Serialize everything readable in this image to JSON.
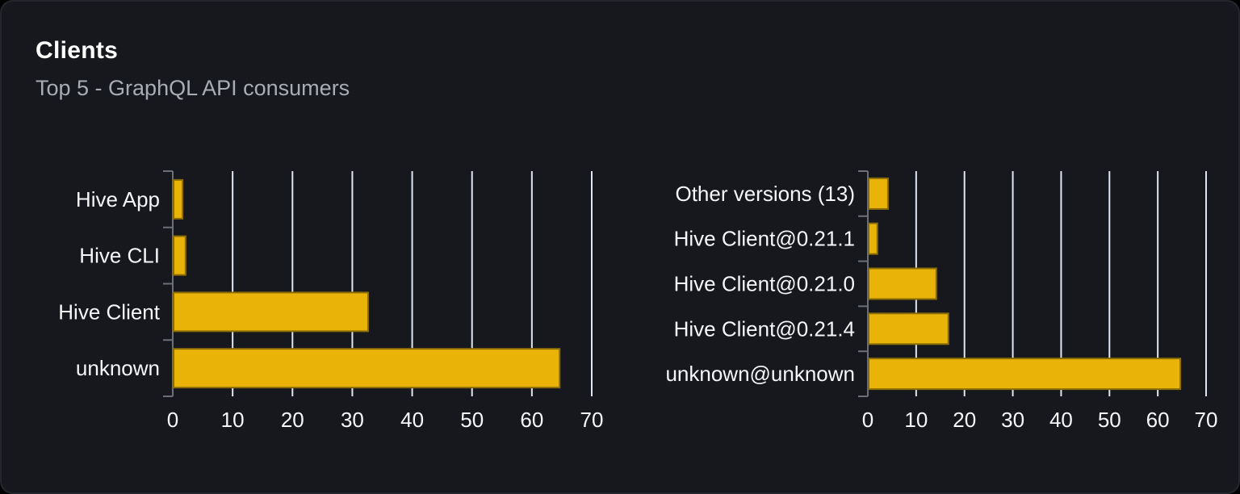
{
  "card": {
    "title": "Clients",
    "subtitle": "Top 5 - GraphQL API consumers"
  },
  "colors": {
    "page_bg": "#000000",
    "card_bg": "#16181d",
    "card_border": "#23262d",
    "title": "#ffffff",
    "subtitle": "#a8adb5",
    "axis_label": "#f5f6f7",
    "axis_line": "#6b6f78",
    "grid_line": "#e0e6f1",
    "bar": "#eab308",
    "bar_border": "#8a6d06"
  },
  "chart_data": [
    {
      "type": "bar",
      "orientation": "horizontal",
      "categories": [
        "Hive App",
        "Hive CLI",
        "Hive Client",
        "unknown"
      ],
      "values": [
        1.5,
        2,
        32.5,
        64.5
      ],
      "xlim": [
        0,
        70
      ],
      "xticks": [
        0,
        10,
        20,
        30,
        40,
        50,
        60,
        70
      ],
      "grid": true,
      "legend": false
    },
    {
      "type": "bar",
      "orientation": "horizontal",
      "categories": [
        "Other versions (13)",
        "Hive Client@0.21.1",
        "Hive Client@0.21.0",
        "Hive Client@0.21.4",
        "unknown@unknown"
      ],
      "values": [
        4,
        1.8,
        14,
        16.5,
        64.5
      ],
      "xlim": [
        0,
        70
      ],
      "xticks": [
        0,
        10,
        20,
        30,
        40,
        50,
        60,
        70
      ],
      "grid": true,
      "legend": false
    }
  ]
}
